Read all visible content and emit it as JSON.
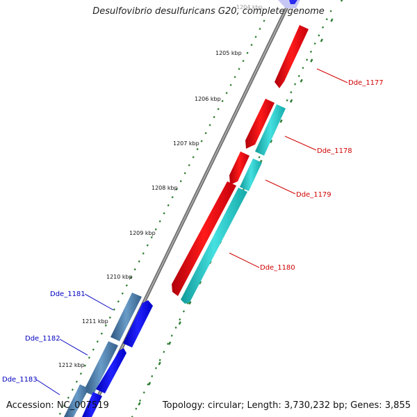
{
  "title": "Desulfovibrio desulfuricans G20, complete genome",
  "footer": {
    "accession": "Accession: NC_007519",
    "summary": "Topology: circular; Length: 3,730,232 bp; Genes: 3,855"
  },
  "colors": {
    "backbone": "#8a8a8a",
    "tick": "#2e7d32",
    "forward_gene": "#e8000f",
    "forward_gene_alt": "#21c6c6",
    "reverse_gene": "#0a0ae6",
    "reverse_gene_alt": "#3d6e9e",
    "label_forward": "#d00000",
    "label_reverse": "#0000c0"
  },
  "kbp_labels": [
    "1204 kbp",
    "1205 kbp",
    "1206 kbp",
    "1207 kbp",
    "1208 kbp",
    "1209 kbp",
    "1210 kbp",
    "1211 kbp",
    "1212 kbp"
  ],
  "genes": [
    {
      "label": "Dde_1177",
      "strand": "forward"
    },
    {
      "label": "Dde_1178",
      "strand": "forward"
    },
    {
      "label": "Dde_1179",
      "strand": "forward"
    },
    {
      "label": "Dde_1180",
      "strand": "forward"
    },
    {
      "label": "Dde_1181",
      "strand": "reverse"
    },
    {
      "label": "Dde_1182",
      "strand": "reverse"
    },
    {
      "label": "Dde_1183",
      "strand": "reverse"
    }
  ]
}
